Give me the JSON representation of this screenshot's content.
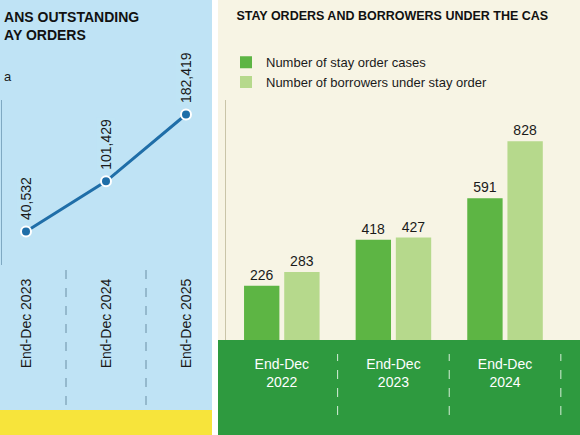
{
  "chart_data": [
    {
      "type": "line",
      "title": [
        "ANS OUTSTANDING",
        "AY ORDERS"
      ],
      "subtitle": "a",
      "categories": [
        "End-Dec 2023",
        "End-Dec 2024",
        "End-Dec 2025"
      ],
      "values": [
        40532,
        101429,
        182419
      ],
      "value_labels": [
        "40,532",
        "101,429",
        "182,419"
      ],
      "color": "#1f6ea8",
      "marker": "circle",
      "ylim": [
        0,
        200000
      ],
      "data_labels": true,
      "tick_labels": "x",
      "grid": false
    },
    {
      "type": "bar",
      "title": "STAY ORDERS AND BORROWERS UNDER THE CAS",
      "categories": [
        "End-Dec 2022",
        "End-Dec 2023",
        "End-Dec 2024"
      ],
      "series": [
        {
          "name": "Number of stay order cases",
          "color": "#5db544",
          "values": [
            226,
            418,
            591
          ]
        },
        {
          "name": "Number of borrowers under stay order",
          "color": "#b6d98c",
          "values": [
            283,
            427,
            828
          ]
        }
      ],
      "ylim": [
        0,
        1000
      ],
      "data_labels": true,
      "tick_labels": "x",
      "legend": "top-left",
      "grid": false
    }
  ]
}
